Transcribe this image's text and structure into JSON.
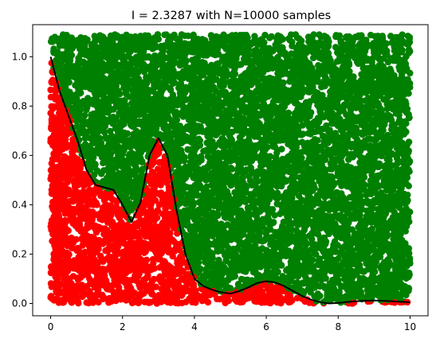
{
  "chart_data": {
    "type": "scatter",
    "title": "I =  2.3287 with N=10000 samples",
    "xlabel": "",
    "ylabel": "",
    "xlim": [
      -0.5,
      10.5
    ],
    "ylim": [
      -0.05,
      1.13
    ],
    "grid": false,
    "xticks": [
      0,
      2,
      4,
      6,
      8,
      10
    ],
    "yticks": [
      0.0,
      0.2,
      0.4,
      0.6,
      0.8,
      1.0
    ],
    "xtick_labels": [
      "0",
      "2",
      "4",
      "6",
      "8",
      "10"
    ],
    "ytick_labels": [
      "0.0",
      "0.2",
      "0.4",
      "0.6",
      "0.8",
      "1.0"
    ],
    "samples": {
      "count": 10000,
      "x_range": [
        0,
        10
      ],
      "y_range": [
        0,
        1.09
      ],
      "below_color": "#ff0000",
      "above_color": "#008000"
    },
    "curve": {
      "color": "#000000",
      "x": [
        0,
        0.25,
        0.5,
        0.75,
        1.0,
        1.25,
        1.5,
        1.75,
        2.0,
        2.25,
        2.5,
        2.75,
        3.0,
        3.25,
        3.5,
        3.75,
        4.0,
        4.25,
        4.5,
        4.75,
        5.0,
        5.25,
        5.5,
        5.75,
        6.0,
        6.25,
        6.5,
        6.75,
        7.0,
        7.25,
        7.5,
        7.75,
        8.0,
        8.25,
        8.5,
        8.75,
        9.0,
        9.25,
        9.5,
        9.75,
        10.0
      ],
      "y": [
        1.0,
        0.86,
        0.76,
        0.66,
        0.54,
        0.48,
        0.47,
        0.46,
        0.4,
        0.33,
        0.41,
        0.6,
        0.67,
        0.6,
        0.38,
        0.2,
        0.1,
        0.07,
        0.055,
        0.045,
        0.04,
        0.05,
        0.065,
        0.083,
        0.09,
        0.085,
        0.07,
        0.05,
        0.03,
        0.015,
        0.005,
        0.0,
        0.002,
        0.006,
        0.009,
        0.011,
        0.012,
        0.011,
        0.009,
        0.007,
        0.005
      ]
    }
  }
}
